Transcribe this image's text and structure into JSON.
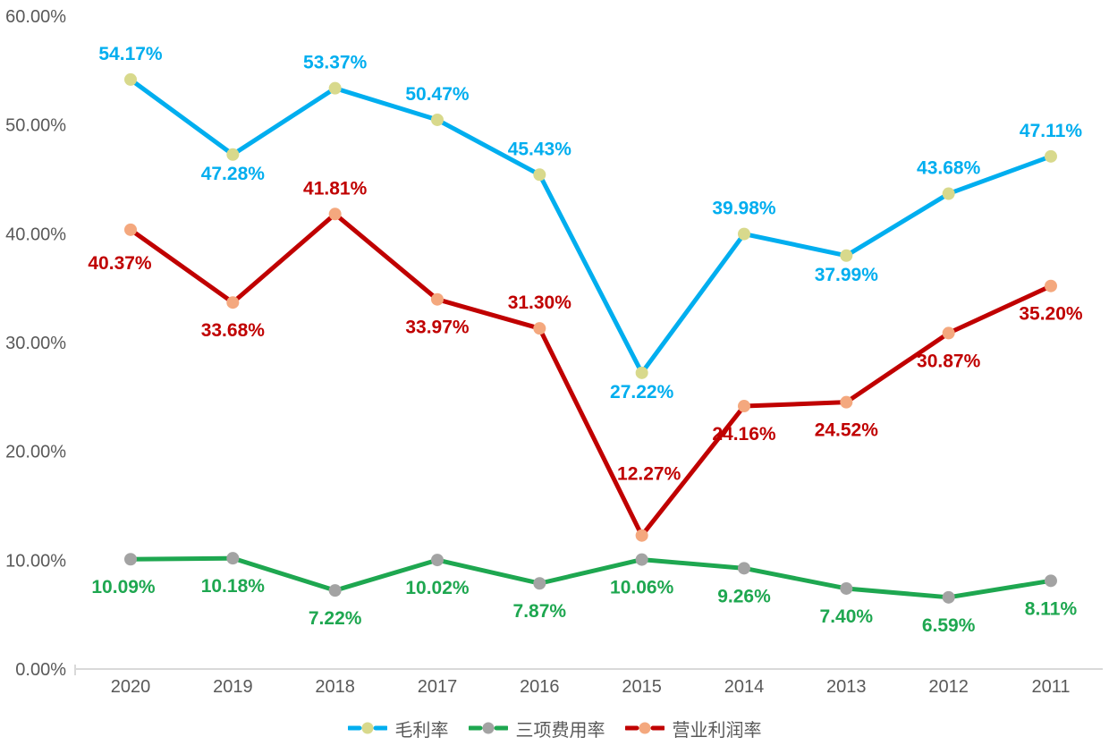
{
  "chart_data": {
    "type": "line",
    "title": "",
    "categories": [
      "2020",
      "2019",
      "2018",
      "2017",
      "2016",
      "2015",
      "2014",
      "2013",
      "2012",
      "2011"
    ],
    "series": [
      {
        "name": "毛利率",
        "color": "#00AEEF",
        "marker_color": "#D8D98C",
        "values": [
          54.17,
          47.28,
          53.37,
          50.47,
          45.43,
          27.22,
          39.98,
          37.99,
          43.68,
          47.11
        ],
        "labels": [
          "54.17%",
          "47.28%",
          "53.37%",
          "50.47%",
          "45.43%",
          "27.22%",
          "39.98%",
          "37.99%",
          "43.68%",
          "47.11%"
        ],
        "label_side": [
          "above",
          "below",
          "above",
          "above",
          "above",
          "below",
          "above",
          "below",
          "above",
          "above"
        ],
        "label_overrides": {
          "1": {
            "dy": 28
          },
          "5": {
            "dy": 28
          },
          "7": {
            "dy": 28
          }
        }
      },
      {
        "name": "三项费用率",
        "color": "#1EA750",
        "marker_color": "#A3A3A3",
        "values": [
          10.09,
          10.18,
          7.22,
          10.02,
          7.87,
          10.06,
          9.26,
          7.4,
          6.59,
          8.11
        ],
        "labels": [
          "10.09%",
          "10.18%",
          "7.22%",
          "10.02%",
          "7.87%",
          "10.06%",
          "9.26%",
          "7.40%",
          "6.59%",
          "8.11%"
        ],
        "label_side": [
          "below",
          "below",
          "below",
          "below",
          "below",
          "below",
          "below",
          "below",
          "below",
          "below"
        ],
        "label_overrides": {
          "0": {
            "dx": -8,
            "dy": 38
          }
        }
      },
      {
        "name": "营业利润率",
        "color": "#C00000",
        "marker_color": "#F4A87E",
        "values": [
          40.37,
          33.68,
          41.81,
          33.97,
          31.3,
          12.27,
          24.16,
          24.52,
          30.87,
          35.2
        ],
        "labels": [
          "40.37%",
          "33.68%",
          "41.81%",
          "33.97%",
          "31.30%",
          "12.27%",
          "24.16%",
          "24.52%",
          "30.87%",
          "35.20%"
        ],
        "label_side": [
          "below",
          "below",
          "above",
          "below",
          "above",
          "above",
          "below",
          "below",
          "below",
          "below"
        ],
        "label_overrides": {
          "0": {
            "dx": -12,
            "dy": 44
          },
          "5": {
            "dx": 8,
            "dy": -62
          }
        }
      }
    ],
    "y_axis": {
      "min": 0,
      "max": 60,
      "tick_step": 10,
      "tick_labels": [
        "0.00%",
        "10.00%",
        "20.00%",
        "30.00%",
        "40.00%",
        "50.00%",
        "60.00%"
      ]
    },
    "x_axis": {
      "label": ""
    },
    "grid": false,
    "legend_position": "bottom"
  },
  "colors": {
    "background": "#FFFFFF",
    "axis_text": "#595959",
    "axis_line": "#D9D9D9"
  }
}
